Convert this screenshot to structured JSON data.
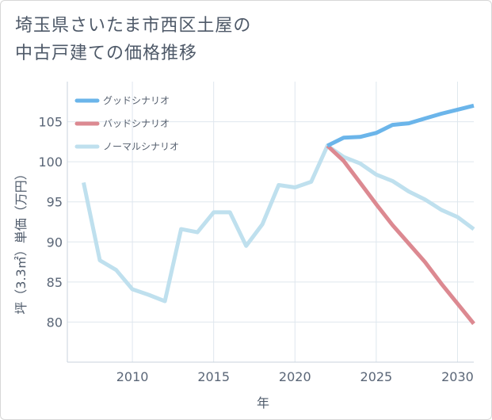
{
  "title_lines": [
    "埼玉県さいたま市西区土屋の",
    "中古戸建ての価格推移"
  ],
  "chart_data": {
    "type": "line",
    "title": "埼玉県さいたま市西区土屋の中古戸建ての価格推移",
    "xlabel": "年",
    "ylabel": "坪（3.3㎡）単価（万円）",
    "xlim": [
      2006,
      2031
    ],
    "ylim": [
      75,
      110
    ],
    "xticks": [
      2010,
      2015,
      2020,
      2025,
      2030
    ],
    "yticks": [
      80,
      85,
      90,
      95,
      100,
      105
    ],
    "grid": true,
    "legend_position": "top-left",
    "series": [
      {
        "name": "グッドシナリオ",
        "color": "#6bb5ea",
        "x": [
          2022,
          2023,
          2024,
          2025,
          2026,
          2027,
          2028,
          2029,
          2030,
          2031
        ],
        "values": [
          102.0,
          103.0,
          103.1,
          103.6,
          104.6,
          104.8,
          105.4,
          106.0,
          106.5,
          107.0
        ]
      },
      {
        "name": "バッドシナリオ",
        "color": "#dc8991",
        "x": [
          2022,
          2023,
          2024,
          2025,
          2026,
          2027,
          2028,
          2029,
          2030,
          2031
        ],
        "values": [
          102.0,
          100.1,
          97.4,
          94.7,
          92.1,
          89.8,
          87.5,
          84.8,
          82.3,
          79.8
        ]
      },
      {
        "name": "ノーマルシナリオ",
        "color": "#bfe0ee",
        "x": [
          2007,
          2008,
          2009,
          2010,
          2011,
          2012,
          2013,
          2014,
          2015,
          2016,
          2017,
          2018,
          2019,
          2020,
          2021,
          2022,
          2023,
          2024,
          2025,
          2026,
          2027,
          2028,
          2029,
          2030,
          2031
        ],
        "values": [
          97.4,
          87.7,
          86.5,
          84.1,
          83.4,
          82.6,
          91.6,
          91.2,
          93.7,
          93.7,
          89.5,
          92.2,
          97.1,
          96.8,
          97.5,
          102.0,
          100.6,
          99.8,
          98.4,
          97.6,
          96.3,
          95.3,
          94.0,
          93.1,
          91.6
        ]
      }
    ]
  }
}
